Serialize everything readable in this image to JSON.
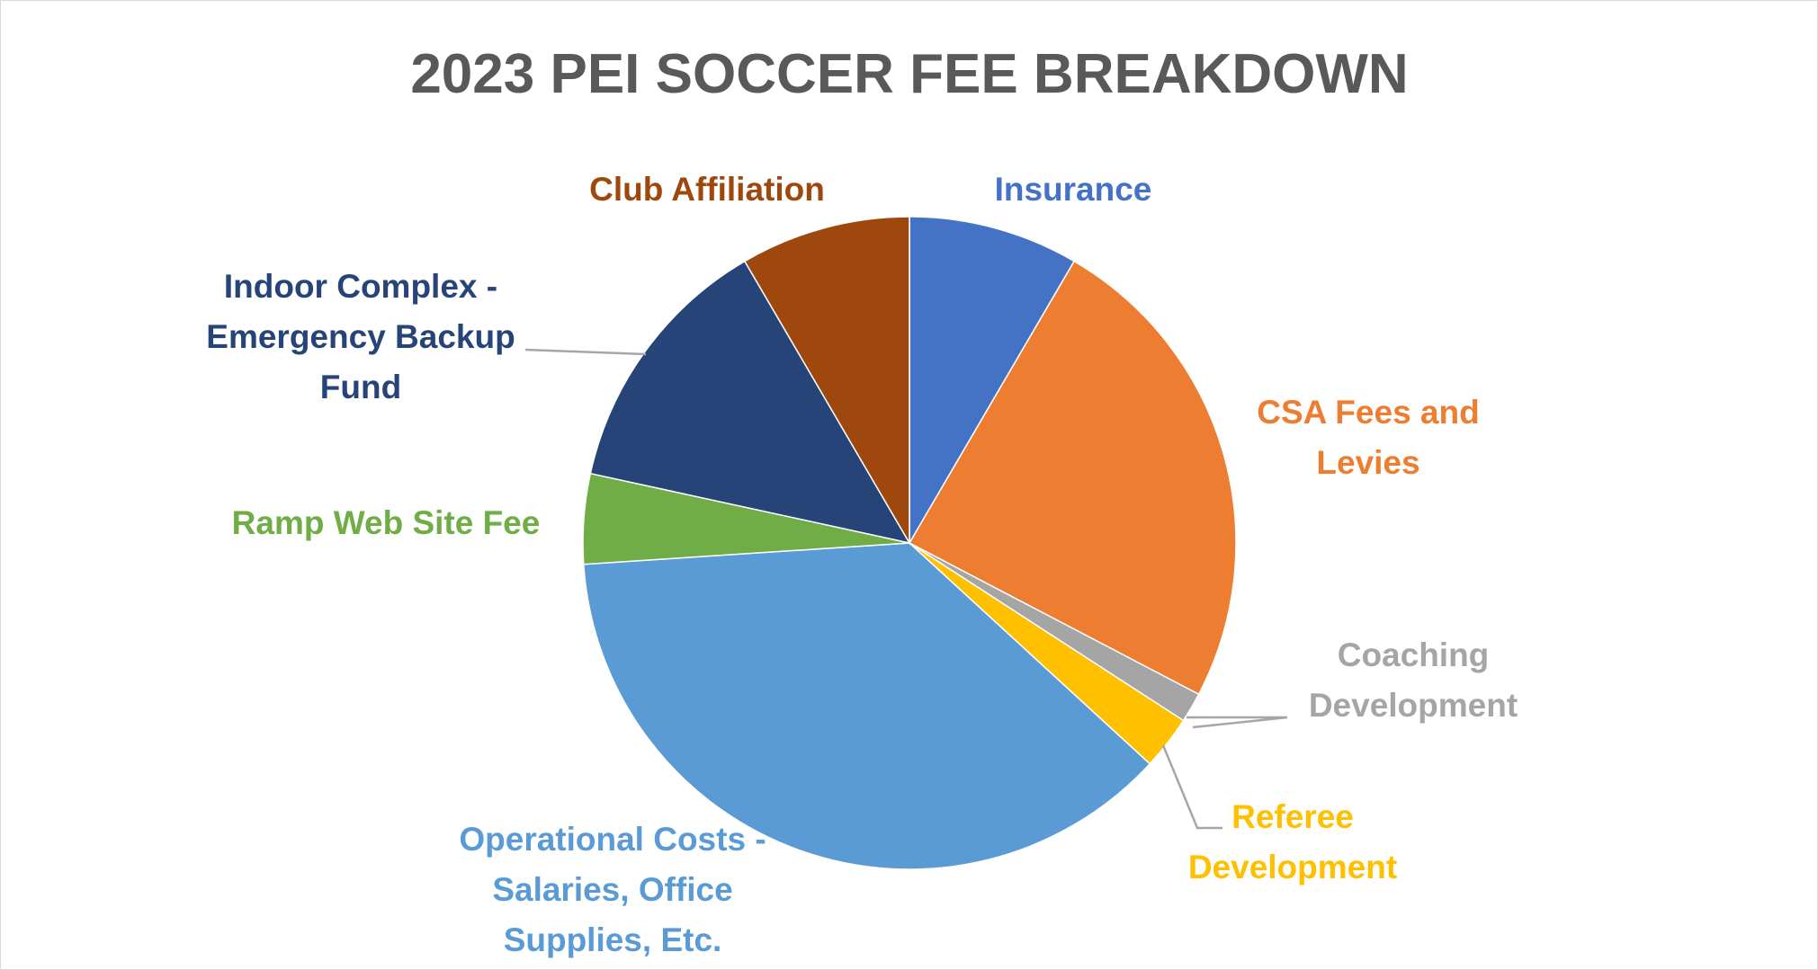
{
  "chart_data": {
    "type": "pie",
    "title": "2023 PEI SOCCER FEE BREAKDOWN",
    "start_angle_deg": 0,
    "direction": "clockwise",
    "legend": "none",
    "slices": [
      {
        "label": "Insurance",
        "value": 8.5,
        "color": "#4472C4",
        "label_lines": [
          "Insurance"
        ]
      },
      {
        "label": "CSA Fees and Levies",
        "value": 24.5,
        "color": "#ED7D31",
        "label_lines": [
          "CSA Fees and",
          "Levies"
        ]
      },
      {
        "label": "Coaching Development",
        "value": 1.5,
        "color": "#A5A5A5",
        "label_lines": [
          "Coaching",
          "Development"
        ]
      },
      {
        "label": "Referee Development",
        "value": 2.7,
        "color": "#FFC000",
        "label_lines": [
          "Referee",
          "Development"
        ]
      },
      {
        "label": "Operational Costs - Salaries, Office Supplies, Etc.",
        "value": 37.5,
        "color": "#5B9BD5",
        "label_lines": [
          "Operational Costs -",
          "Salaries, Office",
          "Supplies, Etc."
        ]
      },
      {
        "label": "Ramp Web Site Fee",
        "value": 4.5,
        "color": "#70AD47",
        "label_lines": [
          "Ramp Web Site Fee"
        ]
      },
      {
        "label": "Indoor Complex - Emergency Backup Fund",
        "value": 13.3,
        "color": "#264478",
        "label_lines": [
          "Indoor Complex -",
          "Emergency Backup",
          "Fund"
        ]
      },
      {
        "label": "Club Affiliation",
        "value": 8.5,
        "color": "#9E480E",
        "label_lines": [
          "Club Affiliation"
        ]
      }
    ]
  }
}
